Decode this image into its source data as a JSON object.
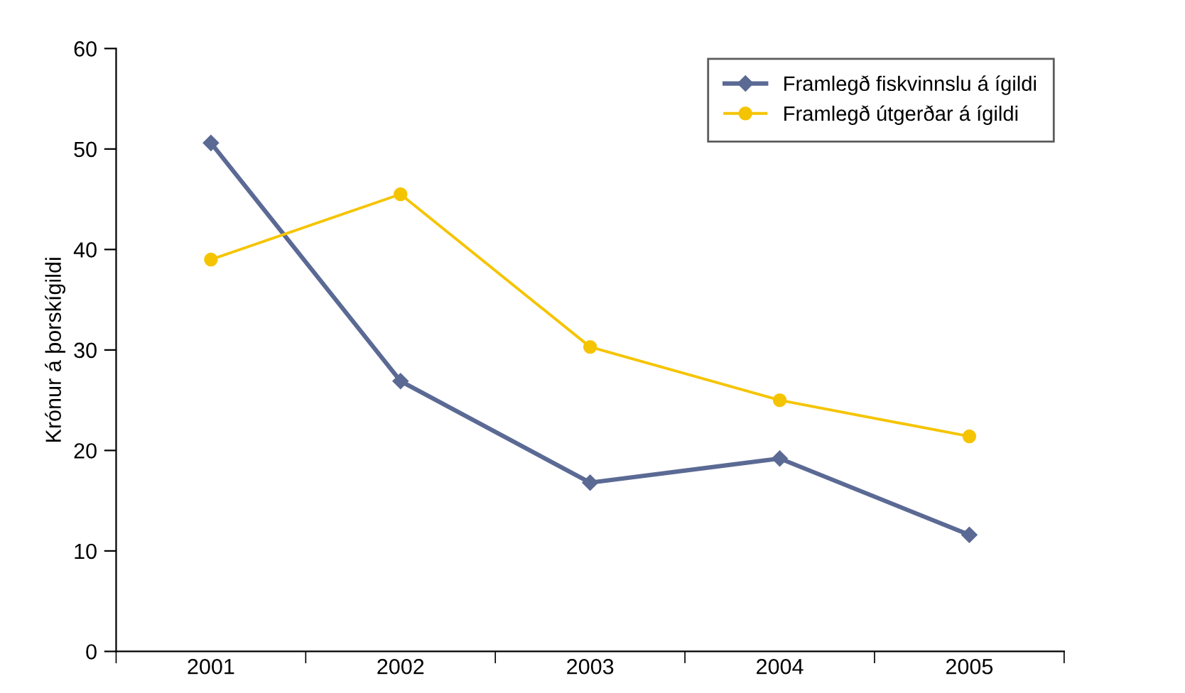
{
  "chart_data": {
    "type": "line",
    "ylabel": "Krónur á þorskígildi",
    "categories": [
      "2001",
      "2002",
      "2003",
      "2004",
      "2005"
    ],
    "series": [
      {
        "name": "Framlegð fiskvinnslu á ígildi",
        "color": "#5b6a94",
        "values": [
          50.6,
          26.9,
          16.8,
          19.2,
          11.6
        ],
        "marker": "diamond"
      },
      {
        "name": "Framlegð útgerðar á ígildi",
        "color": "#f5c400",
        "values": [
          39.0,
          45.5,
          30.3,
          25.0,
          21.4
        ],
        "marker": "circle"
      }
    ],
    "ylim": [
      0,
      60
    ],
    "yticks": [
      0,
      10,
      20,
      30,
      40,
      50,
      60
    ],
    "grid": false,
    "legend": "top right"
  }
}
